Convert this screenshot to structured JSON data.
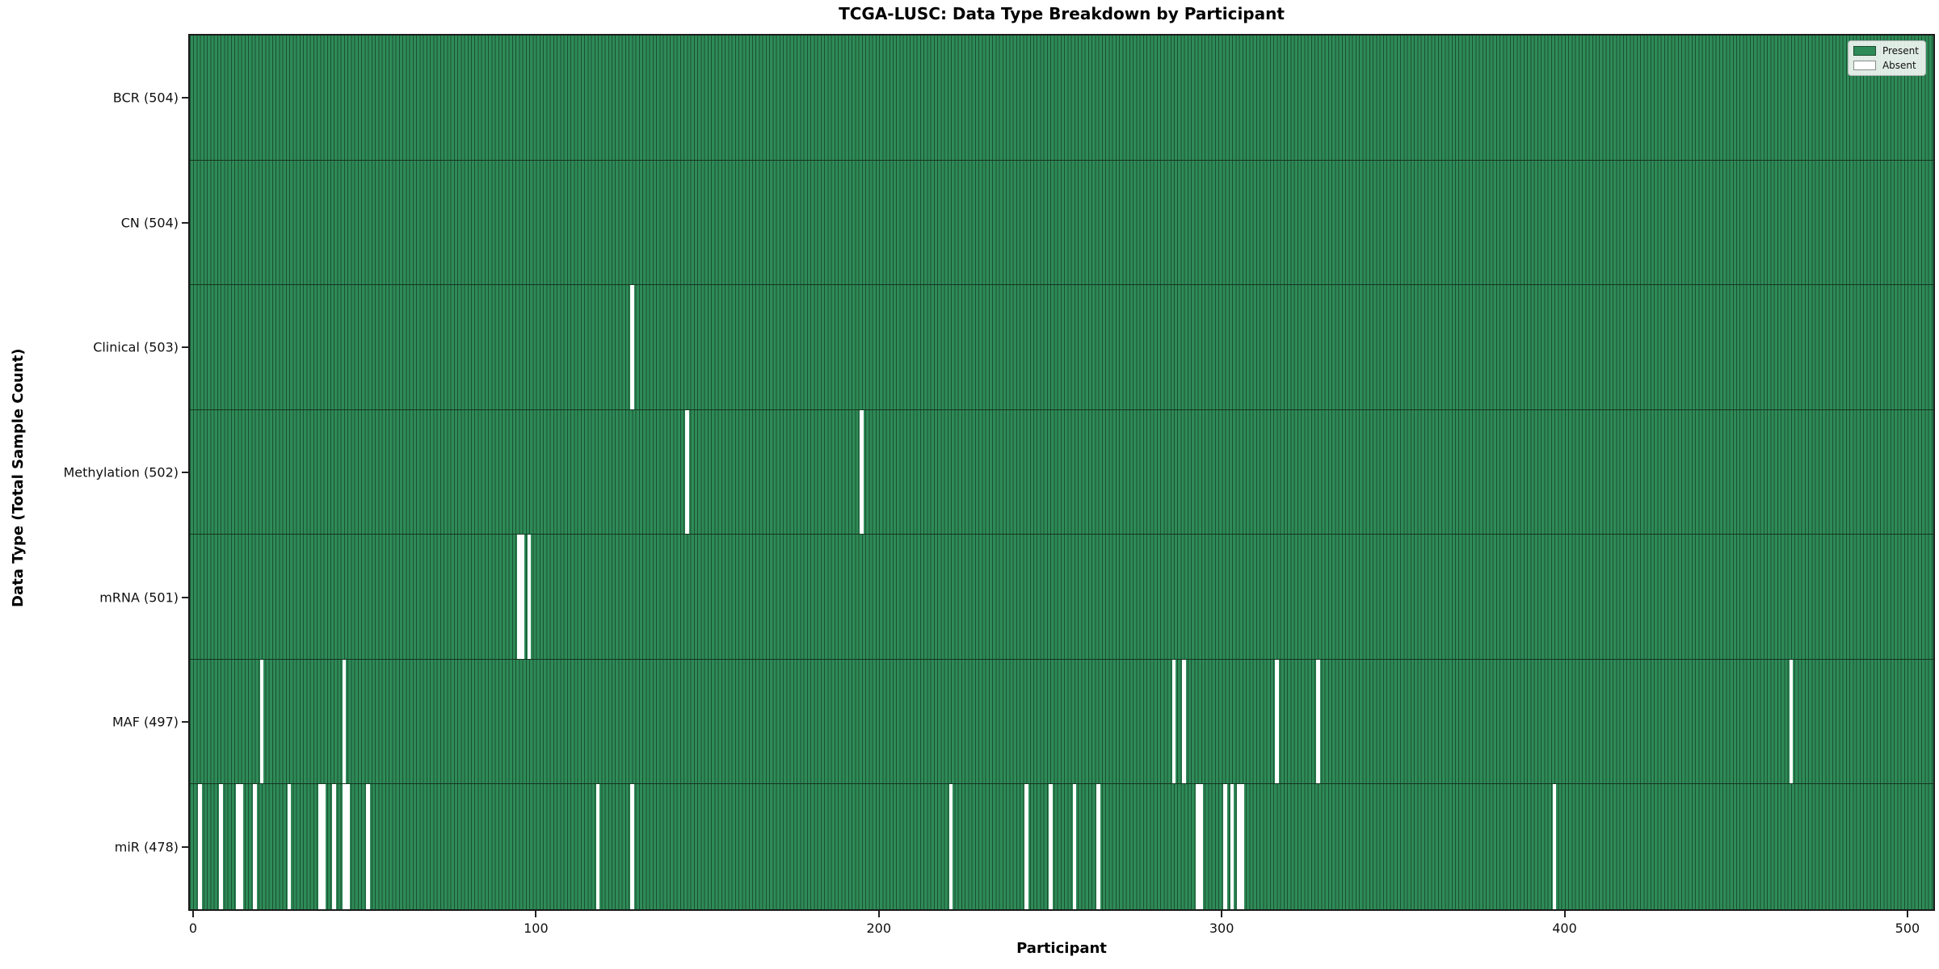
{
  "chart_data": {
    "type": "heatmap",
    "title": "TCGA-LUSC: Data Type Breakdown by Participant",
    "xlabel": "Participant",
    "ylabel": "Data Type (Total Sample Count)",
    "x_ticks": [
      0,
      100,
      200,
      300,
      400,
      500
    ],
    "x_range_hint": [
      0,
      504
    ],
    "n_participants": 504,
    "grid": false,
    "legend_position": "upper right",
    "legend": [
      {
        "label": "Present",
        "color": "#2e8b57"
      },
      {
        "label": "Absent",
        "color": "#ffffff"
      }
    ],
    "rows": [
      {
        "name": "BCR",
        "total": 504,
        "label": "BCR (504)",
        "absent": []
      },
      {
        "name": "CN",
        "total": 504,
        "label": "CN (504)",
        "absent": []
      },
      {
        "name": "Clinical",
        "total": 503,
        "label": "Clinical (503)",
        "absent": [
          128
        ]
      },
      {
        "name": "Methylation",
        "total": 502,
        "label": "Methylation (502)",
        "absent": [
          144,
          195
        ]
      },
      {
        "name": "mRNA",
        "total": 501,
        "label": "mRNA (501)",
        "absent": [
          95,
          96,
          98
        ]
      },
      {
        "name": "MAF",
        "total": 497,
        "label": "MAF (497)",
        "absent": [
          20,
          44,
          286,
          289,
          316,
          328,
          466
        ]
      },
      {
        "name": "miR",
        "total": 478,
        "label": "miR (478)",
        "absent": [
          2,
          8,
          13,
          14,
          18,
          28,
          37,
          38,
          41,
          44,
          45,
          51,
          118,
          128,
          221,
          243,
          250,
          257,
          264,
          293,
          294,
          301,
          303,
          305,
          306,
          397
        ]
      }
    ]
  }
}
